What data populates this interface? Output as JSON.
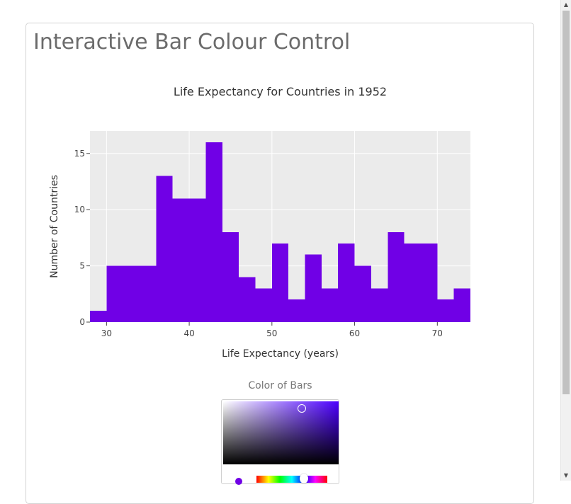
{
  "page": {
    "title": "Interactive Bar Colour Control"
  },
  "chart_data": {
    "type": "bar",
    "title": "Life Expectancy for Countries in 1952",
    "xlabel": "Life Expectancy (years)",
    "ylabel": "Number of Countries",
    "bin_width": 2,
    "bins": [
      {
        "start": 28,
        "end": 30,
        "count": 1
      },
      {
        "start": 30,
        "end": 32,
        "count": 5
      },
      {
        "start": 32,
        "end": 34,
        "count": 5
      },
      {
        "start": 34,
        "end": 36,
        "count": 5
      },
      {
        "start": 36,
        "end": 38,
        "count": 13
      },
      {
        "start": 38,
        "end": 40,
        "count": 11
      },
      {
        "start": 40,
        "end": 42,
        "count": 11
      },
      {
        "start": 42,
        "end": 44,
        "count": 16
      },
      {
        "start": 44,
        "end": 46,
        "count": 8
      },
      {
        "start": 46,
        "end": 48,
        "count": 4
      },
      {
        "start": 48,
        "end": 50,
        "count": 3
      },
      {
        "start": 50,
        "end": 52,
        "count": 7
      },
      {
        "start": 52,
        "end": 54,
        "count": 2
      },
      {
        "start": 54,
        "end": 56,
        "count": 6
      },
      {
        "start": 56,
        "end": 58,
        "count": 3
      },
      {
        "start": 58,
        "end": 60,
        "count": 7
      },
      {
        "start": 60,
        "end": 62,
        "count": 5
      },
      {
        "start": 62,
        "end": 64,
        "count": 3
      },
      {
        "start": 64,
        "end": 66,
        "count": 8
      },
      {
        "start": 66,
        "end": 68,
        "count": 7
      },
      {
        "start": 68,
        "end": 70,
        "count": 7
      },
      {
        "start": 70,
        "end": 72,
        "count": 2
      },
      {
        "start": 72,
        "end": 74,
        "count": 3
      }
    ],
    "xlim": [
      28,
      74
    ],
    "ylim": [
      0,
      17
    ],
    "xticks": [
      30,
      40,
      50,
      60,
      70
    ],
    "yticks": [
      0,
      5,
      10,
      15
    ],
    "bar_color": "#7000e6",
    "plot_background": "#ebebeb",
    "grid": true
  },
  "color_picker": {
    "label": "Color of Bars",
    "selected_color": "#7000e6",
    "hue_color": "#4c00ff"
  },
  "icons": {
    "scroll_up": "▲",
    "scroll_down": "▼"
  }
}
